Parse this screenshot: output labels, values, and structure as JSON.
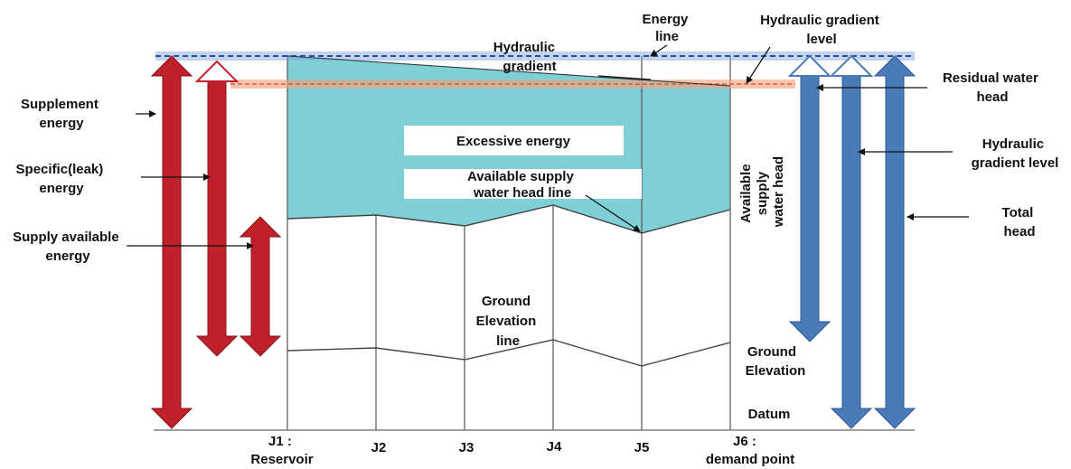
{
  "junctions": [
    {
      "label": [
        "J1 :",
        "Reservoir"
      ]
    },
    {
      "label": [
        "J2"
      ]
    },
    {
      "label": [
        "J3"
      ]
    },
    {
      "label": [
        "J4"
      ]
    },
    {
      "label": [
        "J5"
      ]
    },
    {
      "label": [
        "J6 :",
        "demand point"
      ]
    }
  ],
  "labels": {
    "energy_line": [
      "Energy",
      "line"
    ],
    "hydraulic_gradient": [
      "Hydraulic",
      "gradient"
    ],
    "hydraulic_gradient_level_top": [
      "Hydraulic gradient",
      "level"
    ],
    "residual_water_head": [
      "Residual water",
      "head"
    ],
    "hydraulic_gradient_level_right": [
      "Hydraulic",
      "gradient level"
    ],
    "total_head": [
      "Total",
      "head"
    ],
    "supplement_energy": [
      "Supplement",
      "energy"
    ],
    "specific_leak_energy": [
      "Specific(leak)",
      "energy"
    ],
    "supply_available_energy": [
      "Supply available",
      "energy"
    ],
    "excessive_energy": "Excessive energy",
    "available_supply_line": [
      "Available supply",
      "water head line"
    ],
    "available_supply_head": [
      "Available",
      "supply",
      "water head"
    ],
    "ground_elevation_line": [
      "Ground",
      "Elevation",
      "line"
    ],
    "ground_elevation": [
      "Ground",
      "Elevation"
    ],
    "datum": "Datum"
  },
  "colors": {
    "red_arrow": "#c0202a",
    "blue_arrow": "#4a7ab8",
    "excessive_fill": "#7fd0d6",
    "energy_line": "#2a4fa0",
    "residual_line": "#e05a2a"
  }
}
